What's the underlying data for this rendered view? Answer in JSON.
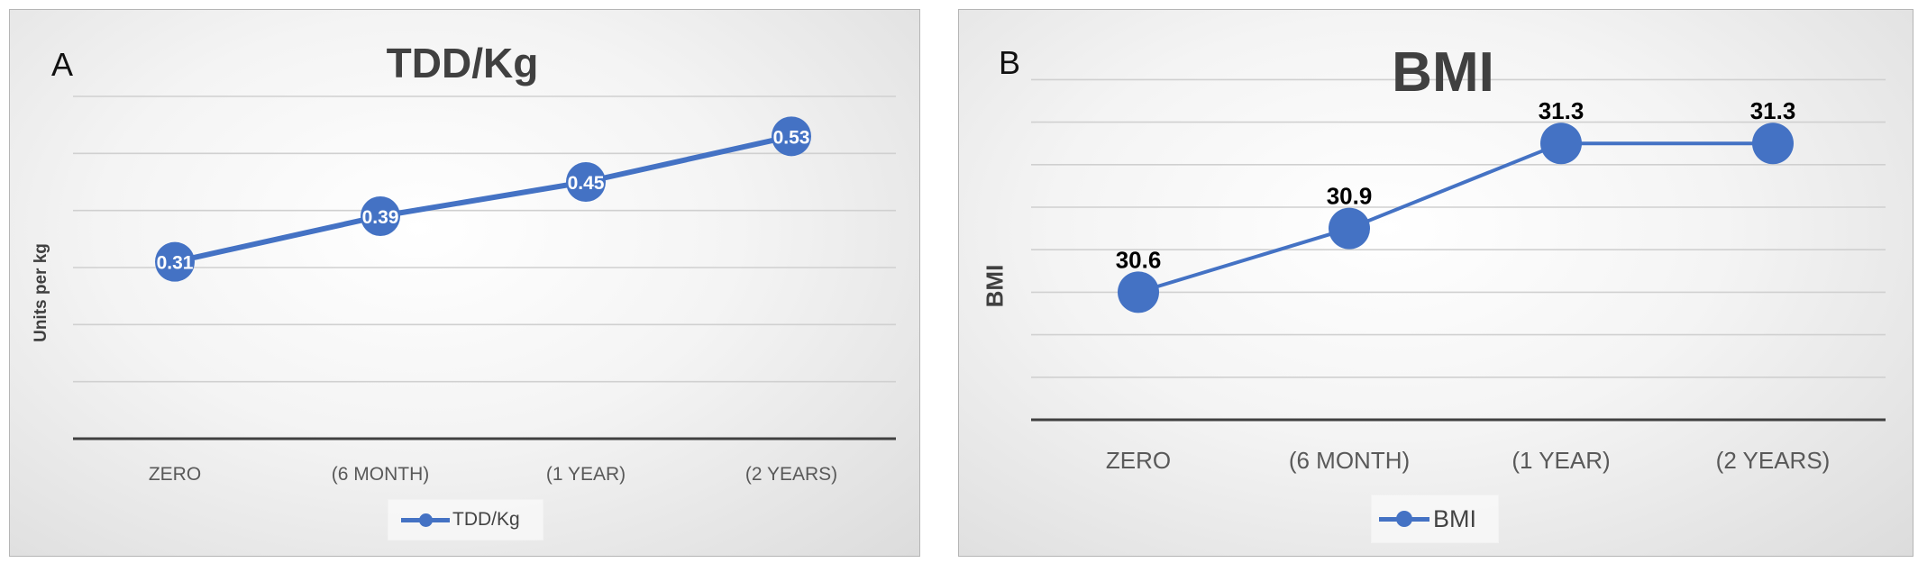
{
  "chart_data": [
    {
      "type": "line",
      "panel_label": "A",
      "title": "TDD/Kg",
      "ylabel": "Units per kg",
      "categories": [
        "ZERO",
        "(6 MONTH)",
        "(1 YEAR)",
        "(2 YEARS)"
      ],
      "series": [
        {
          "name": "TDD/Kg",
          "values": [
            0.31,
            0.39,
            0.45,
            0.53
          ],
          "color": "#4472c4"
        }
      ],
      "data_labels": [
        "0.31",
        "0.39",
        "0.45",
        "0.53"
      ],
      "data_label_position": "center",
      "data_label_color": "#ffffff",
      "ylim": [
        0,
        0.6
      ],
      "y_gridline_step": 0.1,
      "y_tick_labels_shown": false,
      "grid": true,
      "legend_position": "bottom"
    },
    {
      "type": "line",
      "panel_label": "B",
      "title": "BMI",
      "ylabel": "BMI",
      "categories": [
        "ZERO",
        "(6 MONTH)",
        "(1 YEAR)",
        "(2 YEARS)"
      ],
      "series": [
        {
          "name": "BMI",
          "values": [
            30.6,
            30.9,
            31.3,
            31.3
          ],
          "color": "#4472c4"
        }
      ],
      "data_labels": [
        "30.6",
        "30.9",
        "31.3",
        "31.3"
      ],
      "data_label_position": "above",
      "data_label_color": "#000000",
      "ylim": [
        30.0,
        31.5
      ],
      "y_gridline_step": 0.2,
      "y_tick_labels_shown": false,
      "grid": true,
      "legend_position": "bottom"
    }
  ]
}
